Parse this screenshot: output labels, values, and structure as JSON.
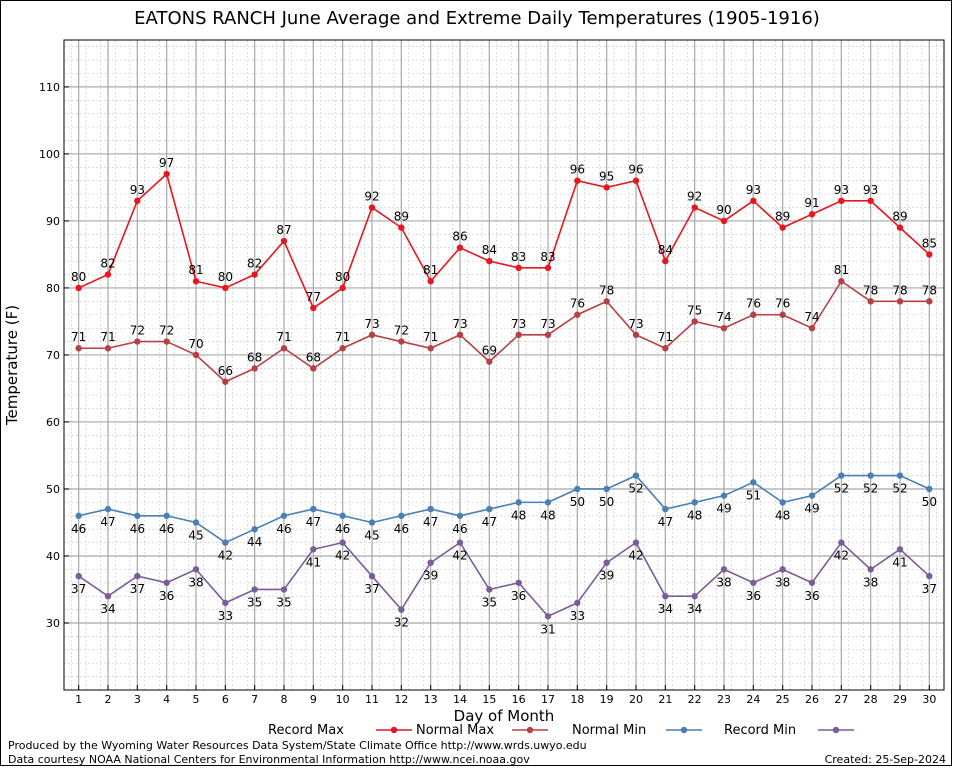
{
  "chart_data": {
    "type": "line",
    "title": "EATONS RANCH June Average and Extreme Daily Temperatures (1905-1916)",
    "xlabel": "Day of Month",
    "ylabel": "Temperature (F)",
    "xlim": [
      0.5,
      30.5
    ],
    "ylim": [
      20,
      117
    ],
    "yticks": [
      30,
      40,
      50,
      60,
      70,
      80,
      90,
      100,
      110
    ],
    "grid": true,
    "legend": "bottom",
    "x": [
      1,
      2,
      3,
      4,
      5,
      6,
      7,
      8,
      9,
      10,
      11,
      12,
      13,
      14,
      15,
      16,
      17,
      18,
      19,
      20,
      21,
      22,
      23,
      24,
      25,
      26,
      27,
      28,
      29,
      30
    ],
    "series": [
      {
        "name": "Record Max",
        "color": "#e8161e",
        "values": [
          80,
          82,
          93,
          97,
          81,
          80,
          82,
          87,
          77,
          80,
          92,
          89,
          81,
          86,
          84,
          83,
          83,
          96,
          95,
          96,
          84,
          92,
          90,
          93,
          89,
          91,
          93,
          93,
          89,
          85
        ]
      },
      {
        "name": "Normal Max",
        "color": "#b84045",
        "values": [
          71,
          71,
          72,
          72,
          70,
          66,
          68,
          71,
          68,
          71,
          73,
          72,
          71,
          73,
          69,
          73,
          73,
          76,
          78,
          73,
          71,
          75,
          74,
          76,
          76,
          74,
          81,
          78,
          78,
          78
        ]
      },
      {
        "name": "Normal Min",
        "color": "#4a7fb5",
        "values": [
          46,
          47,
          46,
          46,
          45,
          42,
          44,
          46,
          47,
          46,
          45,
          46,
          47,
          46,
          47,
          48,
          48,
          50,
          50,
          52,
          47,
          48,
          49,
          51,
          48,
          49,
          52,
          52,
          52,
          50
        ]
      },
      {
        "name": "Record Min",
        "color": "#7b5d9a",
        "values": [
          37,
          34,
          37,
          36,
          38,
          33,
          35,
          35,
          41,
          42,
          37,
          32,
          39,
          42,
          35,
          36,
          31,
          33,
          39,
          42,
          34,
          34,
          38,
          36,
          38,
          36,
          42,
          38,
          41,
          37
        ]
      }
    ]
  },
  "footer": {
    "line1": "Produced by the Wyoming Water Resources Data System/State Climate Office http://www.wrds.uwyo.edu",
    "line2": "Data courtesy NOAA National Centers for Environmental Information http://www.ncei.noaa.gov",
    "created": "Created:  25-Sep-2024"
  }
}
